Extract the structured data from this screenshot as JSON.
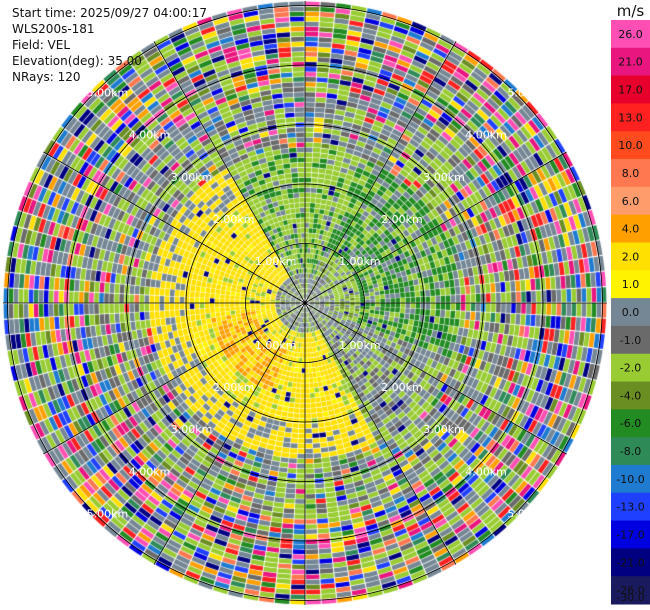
{
  "info": {
    "start_time": "Start time: 2025/09/27 04:00:17",
    "instrument": "WLS200s-181",
    "field": "Field: VEL",
    "elevation": "Elevation(deg): 35.00",
    "nrays": "NRays: 120"
  },
  "colorbar": {
    "unit": "m/s",
    "ticks": [
      "26.0",
      "21.0",
      "17.0",
      "13.0",
      "10.0",
      "8.0",
      "6.0",
      "4.0",
      "2.0",
      "1.0",
      "0.0",
      "-1.0",
      "-2.0",
      "-4.0",
      "-6.0",
      "-8.0",
      "-10.0",
      "-13.0",
      "-17.0",
      "-21.0",
      "-26.0",
      "-30.0"
    ],
    "colors": [
      "#ff4fb4",
      "#e8167e",
      "#e8002c",
      "#ff2020",
      "#ff4b1e",
      "#ff7850",
      "#ff9c6c",
      "#ff9f00",
      "#ffe000",
      "#fff300",
      "#758795",
      "#6a6a6a",
      "#99cc33",
      "#6b8e23",
      "#228b22",
      "#2e8b57",
      "#1e7bd0",
      "#2040ff",
      "#0000e0",
      "#000080",
      "#1a1a5e",
      "#20206a"
    ]
  },
  "chart_data": {
    "type": "heatmap",
    "projection": "polar PPI",
    "field": "VEL",
    "units": "m/s",
    "range_rings_km": [
      "1.00km",
      "2.00km",
      "3.00km",
      "4.00km",
      "5.00km"
    ],
    "ring_values_km": [
      1,
      2,
      3,
      4,
      5
    ],
    "max_range_km": 5.0,
    "nrays": 120,
    "color_range": [
      -30.0,
      26.0
    ],
    "description_near": "near-range (0-2.5 km) mostly light green/yellow with dark green sector to the NE; far range noisy multicolour"
  }
}
